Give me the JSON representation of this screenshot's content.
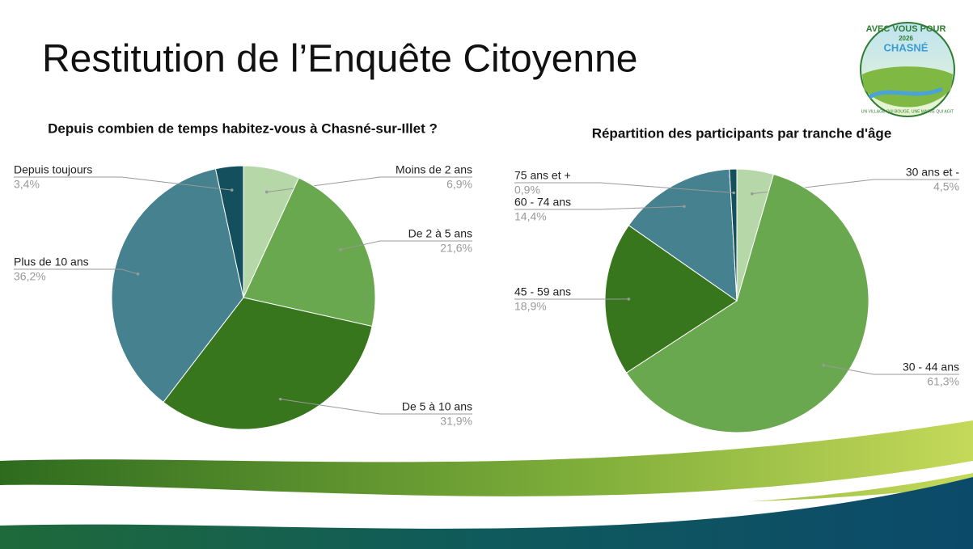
{
  "title": "Restitution de l’Enquête Citoyenne",
  "logo": {
    "line1": "AVEC VOUS POUR",
    "year": "2026",
    "name": "CHASNÉ",
    "tagline": "UN VILLAGE QUI BOUGE, UNE MAIRIE QUI AGIT"
  },
  "chart_data": [
    {
      "type": "pie",
      "title": "Depuis combien de temps habitez-vous à Chasné-sur-Illet ?",
      "categories": [
        "Moins de 2 ans",
        "De 2 à 5 ans",
        "De 5 à 10 ans",
        "Plus de 10 ans",
        "Depuis toujours"
      ],
      "values": [
        6.9,
        21.6,
        31.9,
        36.2,
        3.4
      ],
      "value_labels": [
        "6,9%",
        "21,6%",
        "31,9%",
        "36,2%",
        "3,4%"
      ],
      "colors": [
        "#b6d7a8",
        "#6aa84f",
        "#38761d",
        "#45818e",
        "#134f5c"
      ]
    },
    {
      "type": "pie",
      "title": "Répartition des participants par tranche d'âge",
      "categories": [
        "30 ans et -",
        "30 - 44 ans",
        "45 - 59 ans",
        "60 - 74 ans",
        "75 ans et +"
      ],
      "values": [
        4.5,
        61.3,
        18.9,
        14.4,
        0.9
      ],
      "value_labels": [
        "4,5%",
        "61,3%",
        "18,9%",
        "14,4%",
        "0,9%"
      ],
      "colors": [
        "#b6d7a8",
        "#6aa84f",
        "#38761d",
        "#45818e",
        "#134f5c"
      ]
    }
  ]
}
